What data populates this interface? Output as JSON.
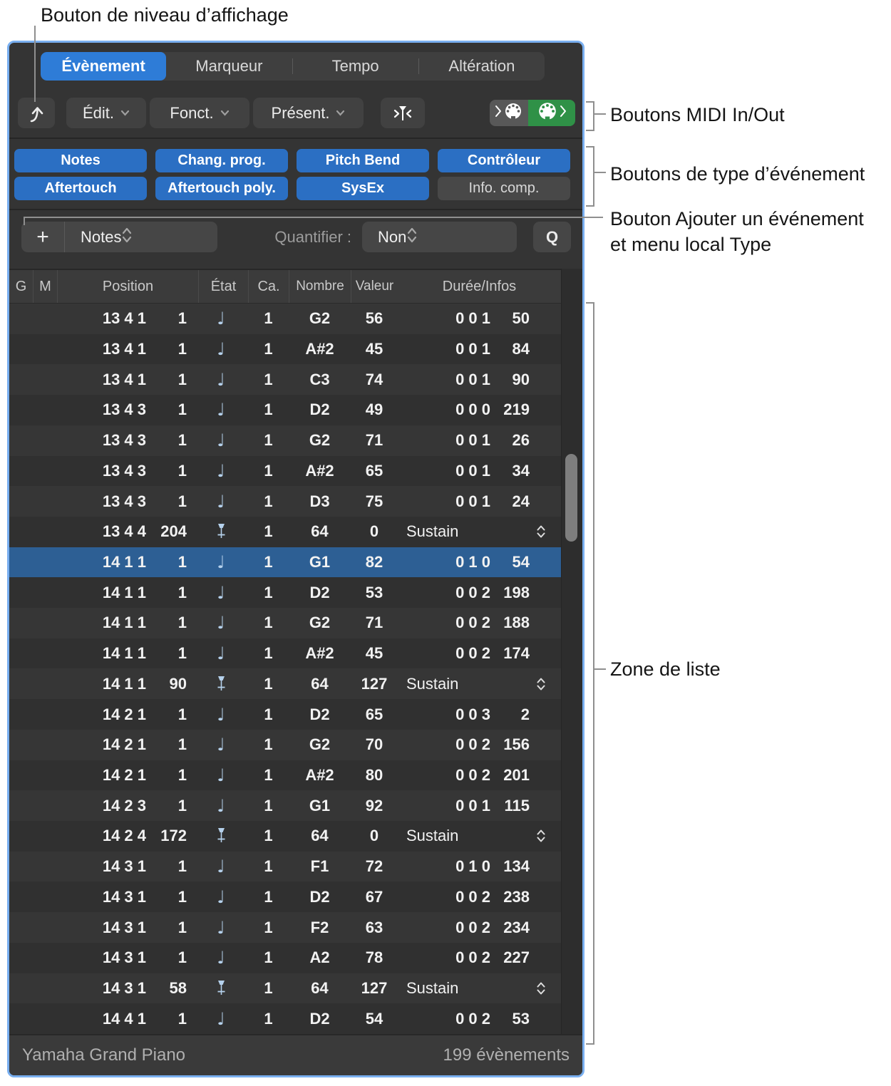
{
  "colors": {
    "accent": "#2e7cd7",
    "selection": "#2d5f94",
    "button_blue": "#2b6fc3",
    "midi_out_green": "#2f9147",
    "panel_border": "#79aff0",
    "note_icon": "#b5d1ec"
  },
  "annotations": {
    "display_level": "Bouton de niveau d’affichage",
    "midi_io": "Boutons MIDI In/Out",
    "event_types": "Boutons de type d’événement",
    "add_event_line1": "Bouton Ajouter un événement",
    "add_event_line2": "et menu local Type",
    "list_area": "Zone de liste"
  },
  "tabs": [
    {
      "label": "Évènement",
      "active": true
    },
    {
      "label": "Marqueur",
      "active": false
    },
    {
      "label": "Tempo",
      "active": false
    },
    {
      "label": "Altération",
      "active": false
    }
  ],
  "toolbar": {
    "edit": "Édit.",
    "functions": "Fonct.",
    "view": "Présent."
  },
  "event_type_buttons": [
    {
      "label": "Notes",
      "active": true
    },
    {
      "label": "Chang. prog.",
      "active": true
    },
    {
      "label": "Pitch Bend",
      "active": true
    },
    {
      "label": "Contrôleur",
      "active": true
    },
    {
      "label": "Aftertouch",
      "active": true
    },
    {
      "label": "Aftertouch poly.",
      "active": true
    },
    {
      "label": "SysEx",
      "active": true
    },
    {
      "label": "Info. comp.",
      "active": false
    }
  ],
  "add_row": {
    "plus": "+",
    "type_value": "Notes",
    "quantize_label": "Quantifier :",
    "quantize_value": "Non",
    "q_button": "Q"
  },
  "table": {
    "headers": [
      "G",
      "M",
      "Position",
      "État",
      "Ca.",
      "Nombre",
      "Valeur",
      "Durée/Infos"
    ],
    "selected_index": 8,
    "rows": [
      {
        "pos": "13 4 1",
        "tick": "1",
        "icon": "note",
        "ca": "1",
        "num": "G2",
        "val": "56",
        "d1": "0 0 1",
        "d2": "50"
      },
      {
        "pos": "13 4 1",
        "tick": "1",
        "icon": "note",
        "ca": "1",
        "num": "A#2",
        "val": "45",
        "d1": "0 0 1",
        "d2": "84"
      },
      {
        "pos": "13 4 1",
        "tick": "1",
        "icon": "note",
        "ca": "1",
        "num": "C3",
        "val": "74",
        "d1": "0 0 1",
        "d2": "90"
      },
      {
        "pos": "13 4 3",
        "tick": "1",
        "icon": "note",
        "ca": "1",
        "num": "D2",
        "val": "49",
        "d1": "0 0 0",
        "d2": "219"
      },
      {
        "pos": "13 4 3",
        "tick": "1",
        "icon": "note",
        "ca": "1",
        "num": "G2",
        "val": "71",
        "d1": "0 0 1",
        "d2": "26"
      },
      {
        "pos": "13 4 3",
        "tick": "1",
        "icon": "note",
        "ca": "1",
        "num": "A#2",
        "val": "65",
        "d1": "0 0 1",
        "d2": "34"
      },
      {
        "pos": "13 4 3",
        "tick": "1",
        "icon": "note",
        "ca": "1",
        "num": "D3",
        "val": "75",
        "d1": "0 0 1",
        "d2": "24"
      },
      {
        "pos": "13 4 4",
        "tick": "204",
        "icon": "pedal",
        "ca": "1",
        "num": "64",
        "val": "0",
        "info": "Sustain"
      },
      {
        "pos": "14 1 1",
        "tick": "1",
        "icon": "note",
        "ca": "1",
        "num": "G1",
        "val": "82",
        "d1": "0 1 0",
        "d2": "54"
      },
      {
        "pos": "14 1 1",
        "tick": "1",
        "icon": "note",
        "ca": "1",
        "num": "D2",
        "val": "53",
        "d1": "0 0 2",
        "d2": "198"
      },
      {
        "pos": "14 1 1",
        "tick": "1",
        "icon": "note",
        "ca": "1",
        "num": "G2",
        "val": "71",
        "d1": "0 0 2",
        "d2": "188"
      },
      {
        "pos": "14 1 1",
        "tick": "1",
        "icon": "note",
        "ca": "1",
        "num": "A#2",
        "val": "45",
        "d1": "0 0 2",
        "d2": "174"
      },
      {
        "pos": "14 1 1",
        "tick": "90",
        "icon": "pedal",
        "ca": "1",
        "num": "64",
        "val": "127",
        "info": "Sustain"
      },
      {
        "pos": "14 2 1",
        "tick": "1",
        "icon": "note",
        "ca": "1",
        "num": "D2",
        "val": "65",
        "d1": "0 0 3",
        "d2": "2"
      },
      {
        "pos": "14 2 1",
        "tick": "1",
        "icon": "note",
        "ca": "1",
        "num": "G2",
        "val": "70",
        "d1": "0 0 2",
        "d2": "156"
      },
      {
        "pos": "14 2 1",
        "tick": "1",
        "icon": "note",
        "ca": "1",
        "num": "A#2",
        "val": "80",
        "d1": "0 0 2",
        "d2": "201"
      },
      {
        "pos": "14 2 3",
        "tick": "1",
        "icon": "note",
        "ca": "1",
        "num": "G1",
        "val": "92",
        "d1": "0 0 1",
        "d2": "115"
      },
      {
        "pos": "14 2 4",
        "tick": "172",
        "icon": "pedal",
        "ca": "1",
        "num": "64",
        "val": "0",
        "info": "Sustain"
      },
      {
        "pos": "14 3 1",
        "tick": "1",
        "icon": "note",
        "ca": "1",
        "num": "F1",
        "val": "72",
        "d1": "0 1 0",
        "d2": "134"
      },
      {
        "pos": "14 3 1",
        "tick": "1",
        "icon": "note",
        "ca": "1",
        "num": "D2",
        "val": "67",
        "d1": "0 0 2",
        "d2": "238"
      },
      {
        "pos": "14 3 1",
        "tick": "1",
        "icon": "note",
        "ca": "1",
        "num": "F2",
        "val": "63",
        "d1": "0 0 2",
        "d2": "234"
      },
      {
        "pos": "14 3 1",
        "tick": "1",
        "icon": "note",
        "ca": "1",
        "num": "A2",
        "val": "78",
        "d1": "0 0 2",
        "d2": "227"
      },
      {
        "pos": "14 3 1",
        "tick": "58",
        "icon": "pedal",
        "ca": "1",
        "num": "64",
        "val": "127",
        "info": "Sustain"
      },
      {
        "pos": "14 4 1",
        "tick": "1",
        "icon": "note",
        "ca": "1",
        "num": "D2",
        "val": "54",
        "d1": "0 0 2",
        "d2": "53"
      }
    ]
  },
  "status": {
    "track": "Yamaha Grand Piano",
    "count": "199 évènements"
  }
}
